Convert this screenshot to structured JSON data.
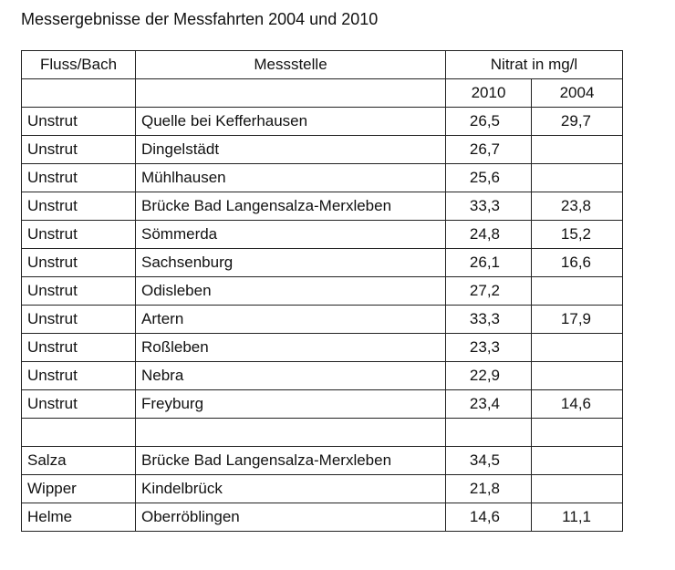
{
  "title": "Messergebnisse der Messfahrten 2004 und 2010",
  "table": {
    "headers": {
      "river": "Fluss/Bach",
      "station": "Messstelle",
      "nitrate": "Nitrat in mg/l",
      "year_a": "2010",
      "year_b": "2004"
    },
    "rows": [
      {
        "river": "Unstrut",
        "station": "Quelle bei Kefferhausen",
        "v2010": "26,5",
        "v2004": "29,7"
      },
      {
        "river": "Unstrut",
        "station": "Dingelstädt",
        "v2010": "26,7",
        "v2004": ""
      },
      {
        "river": "Unstrut",
        "station": "Mühlhausen",
        "v2010": "25,6",
        "v2004": ""
      },
      {
        "river": "Unstrut",
        "station": "Brücke Bad Langensalza-Merxleben",
        "v2010": "33,3",
        "v2004": "23,8"
      },
      {
        "river": "Unstrut",
        "station": "Sömmerda",
        "v2010": "24,8",
        "v2004": "15,2"
      },
      {
        "river": "Unstrut",
        "station": "Sachsenburg",
        "v2010": "26,1",
        "v2004": "16,6"
      },
      {
        "river": "Unstrut",
        "station": "Odisleben",
        "v2010": "27,2",
        "v2004": ""
      },
      {
        "river": "Unstrut",
        "station": "Artern",
        "v2010": "33,3",
        "v2004": "17,9"
      },
      {
        "river": "Unstrut",
        "station": "Roßleben",
        "v2010": "23,3",
        "v2004": ""
      },
      {
        "river": "Unstrut",
        "station": "Nebra",
        "v2010": "22,9",
        "v2004": ""
      },
      {
        "river": "Unstrut",
        "station": "Freyburg",
        "v2010": "23,4",
        "v2004": "14,6"
      },
      {
        "river": "",
        "station": "",
        "v2010": "",
        "v2004": ""
      },
      {
        "river": "Salza",
        "station": "Brücke Bad Langensalza-Merxleben",
        "v2010": "34,5",
        "v2004": ""
      },
      {
        "river": "Wipper",
        "station": "Kindelbrück",
        "v2010": "21,8",
        "v2004": ""
      },
      {
        "river": "Helme",
        "station": "Oberröblingen",
        "v2010": "14,6",
        "v2004": "11,1"
      }
    ]
  }
}
